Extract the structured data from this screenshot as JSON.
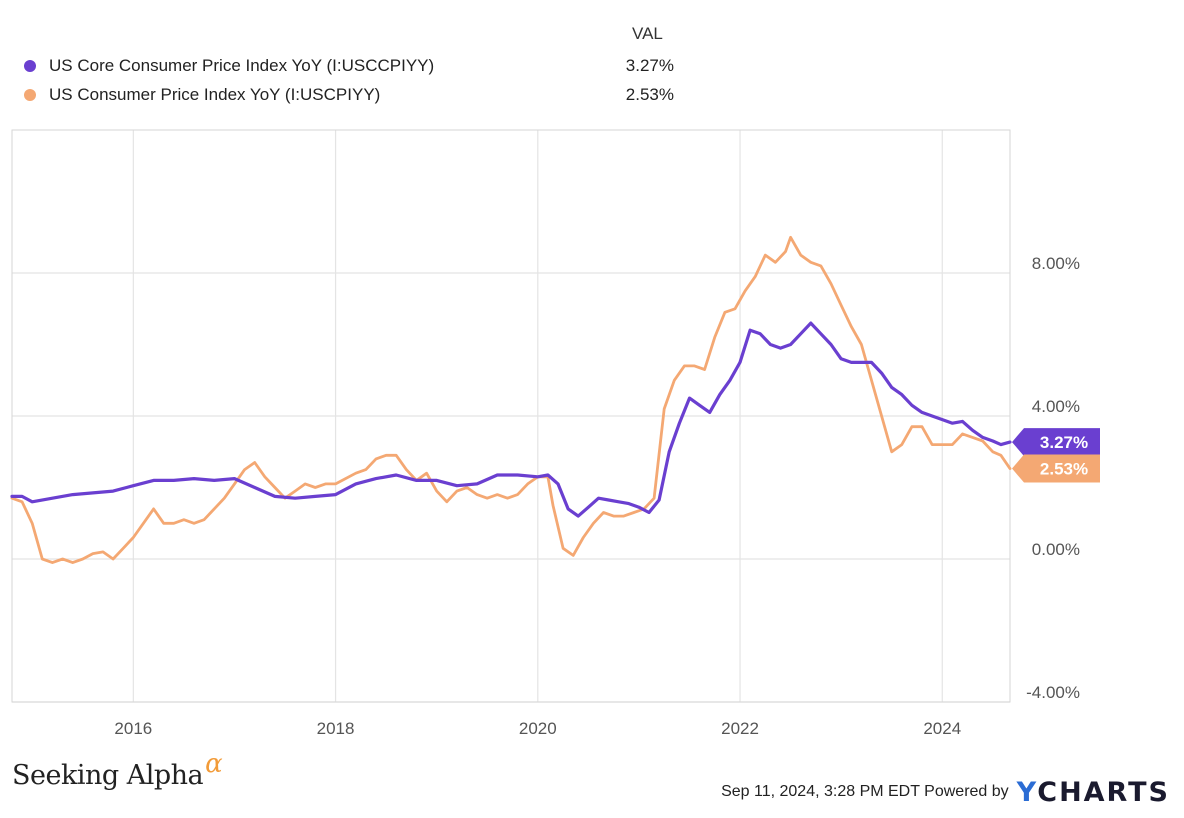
{
  "legend": {
    "header": "VAL",
    "series": [
      {
        "name": "US Core Consumer Price Index YoY (I:USCCPIYY)",
        "value": "3.27%",
        "color": "#6a3fd0"
      },
      {
        "name": "US Consumer Price Index YoY (I:USCPIYY)",
        "value": "2.53%",
        "color": "#f4a873"
      }
    ]
  },
  "chart_data": {
    "type": "line",
    "x_range": [
      2014.8,
      2024.67
    ],
    "y_range": [
      -4.0,
      12.0
    ],
    "x_ticks": [
      {
        "value": 2016,
        "label": "2016"
      },
      {
        "value": 2018,
        "label": "2018"
      },
      {
        "value": 2020,
        "label": "2020"
      },
      {
        "value": 2022,
        "label": "2022"
      },
      {
        "value": 2024,
        "label": "2024"
      }
    ],
    "y_ticks": [
      {
        "value": 8,
        "label": "8.00%"
      },
      {
        "value": 4,
        "label": "4.00%"
      },
      {
        "value": 0,
        "label": "0.00%"
      },
      {
        "value": -4,
        "label": "-4.00%"
      }
    ],
    "grid": true,
    "series": [
      {
        "name": "US Core Consumer Price Index YoY (I:USCCPIYY)",
        "color": "#6a3fd0",
        "end_label": "3.27%",
        "points": [
          [
            2014.8,
            1.75
          ],
          [
            2014.9,
            1.75
          ],
          [
            2015.0,
            1.6
          ],
          [
            2015.2,
            1.7
          ],
          [
            2015.4,
            1.8
          ],
          [
            2015.6,
            1.85
          ],
          [
            2015.8,
            1.9
          ],
          [
            2016.0,
            2.05
          ],
          [
            2016.2,
            2.2
          ],
          [
            2016.4,
            2.2
          ],
          [
            2016.6,
            2.25
          ],
          [
            2016.8,
            2.2
          ],
          [
            2017.0,
            2.25
          ],
          [
            2017.2,
            2.0
          ],
          [
            2017.4,
            1.75
          ],
          [
            2017.6,
            1.7
          ],
          [
            2017.8,
            1.75
          ],
          [
            2018.0,
            1.8
          ],
          [
            2018.2,
            2.1
          ],
          [
            2018.4,
            2.25
          ],
          [
            2018.6,
            2.35
          ],
          [
            2018.8,
            2.2
          ],
          [
            2019.0,
            2.2
          ],
          [
            2019.2,
            2.05
          ],
          [
            2019.4,
            2.1
          ],
          [
            2019.6,
            2.35
          ],
          [
            2019.8,
            2.35
          ],
          [
            2020.0,
            2.3
          ],
          [
            2020.1,
            2.35
          ],
          [
            2020.2,
            2.1
          ],
          [
            2020.3,
            1.4
          ],
          [
            2020.4,
            1.2
          ],
          [
            2020.5,
            1.45
          ],
          [
            2020.6,
            1.7
          ],
          [
            2020.7,
            1.65
          ],
          [
            2020.8,
            1.6
          ],
          [
            2020.9,
            1.55
          ],
          [
            2021.0,
            1.45
          ],
          [
            2021.1,
            1.3
          ],
          [
            2021.2,
            1.65
          ],
          [
            2021.3,
            3.0
          ],
          [
            2021.4,
            3.8
          ],
          [
            2021.5,
            4.5
          ],
          [
            2021.6,
            4.3
          ],
          [
            2021.7,
            4.1
          ],
          [
            2021.8,
            4.6
          ],
          [
            2021.9,
            5.0
          ],
          [
            2022.0,
            5.5
          ],
          [
            2022.1,
            6.4
          ],
          [
            2022.2,
            6.3
          ],
          [
            2022.3,
            6.0
          ],
          [
            2022.4,
            5.9
          ],
          [
            2022.5,
            6.0
          ],
          [
            2022.6,
            6.3
          ],
          [
            2022.7,
            6.6
          ],
          [
            2022.8,
            6.3
          ],
          [
            2022.9,
            6.0
          ],
          [
            2023.0,
            5.6
          ],
          [
            2023.1,
            5.5
          ],
          [
            2023.2,
            5.5
          ],
          [
            2023.3,
            5.5
          ],
          [
            2023.4,
            5.2
          ],
          [
            2023.5,
            4.8
          ],
          [
            2023.6,
            4.6
          ],
          [
            2023.7,
            4.3
          ],
          [
            2023.8,
            4.1
          ],
          [
            2023.9,
            4.0
          ],
          [
            2024.0,
            3.9
          ],
          [
            2024.1,
            3.8
          ],
          [
            2024.2,
            3.85
          ],
          [
            2024.3,
            3.6
          ],
          [
            2024.4,
            3.4
          ],
          [
            2024.5,
            3.3
          ],
          [
            2024.58,
            3.2
          ],
          [
            2024.67,
            3.27
          ]
        ]
      },
      {
        "name": "US Consumer Price Index YoY (I:USCPIYY)",
        "color": "#f4a873",
        "end_label": "2.53%",
        "points": [
          [
            2014.8,
            1.7
          ],
          [
            2014.9,
            1.6
          ],
          [
            2015.0,
            1.0
          ],
          [
            2015.1,
            0.0
          ],
          [
            2015.2,
            -0.1
          ],
          [
            2015.3,
            0.0
          ],
          [
            2015.4,
            -0.1
          ],
          [
            2015.5,
            0.0
          ],
          [
            2015.6,
            0.15
          ],
          [
            2015.7,
            0.2
          ],
          [
            2015.8,
            0.0
          ],
          [
            2015.9,
            0.3
          ],
          [
            2016.0,
            0.6
          ],
          [
            2016.1,
            1.0
          ],
          [
            2016.2,
            1.4
          ],
          [
            2016.3,
            1.0
          ],
          [
            2016.4,
            1.0
          ],
          [
            2016.5,
            1.1
          ],
          [
            2016.6,
            1.0
          ],
          [
            2016.7,
            1.1
          ],
          [
            2016.8,
            1.4
          ],
          [
            2016.9,
            1.7
          ],
          [
            2017.0,
            2.1
          ],
          [
            2017.1,
            2.5
          ],
          [
            2017.2,
            2.7
          ],
          [
            2017.3,
            2.3
          ],
          [
            2017.4,
            2.0
          ],
          [
            2017.5,
            1.7
          ],
          [
            2017.6,
            1.9
          ],
          [
            2017.7,
            2.1
          ],
          [
            2017.8,
            2.0
          ],
          [
            2017.9,
            2.1
          ],
          [
            2018.0,
            2.1
          ],
          [
            2018.2,
            2.4
          ],
          [
            2018.3,
            2.5
          ],
          [
            2018.4,
            2.8
          ],
          [
            2018.5,
            2.9
          ],
          [
            2018.6,
            2.9
          ],
          [
            2018.7,
            2.5
          ],
          [
            2018.8,
            2.2
          ],
          [
            2018.9,
            2.4
          ],
          [
            2019.0,
            1.9
          ],
          [
            2019.1,
            1.6
          ],
          [
            2019.2,
            1.9
          ],
          [
            2019.3,
            2.0
          ],
          [
            2019.4,
            1.8
          ],
          [
            2019.5,
            1.7
          ],
          [
            2019.6,
            1.8
          ],
          [
            2019.7,
            1.7
          ],
          [
            2019.8,
            1.8
          ],
          [
            2019.9,
            2.1
          ],
          [
            2020.0,
            2.3
          ],
          [
            2020.1,
            2.3
          ],
          [
            2020.15,
            1.5
          ],
          [
            2020.25,
            0.3
          ],
          [
            2020.35,
            0.1
          ],
          [
            2020.45,
            0.6
          ],
          [
            2020.55,
            1.0
          ],
          [
            2020.65,
            1.3
          ],
          [
            2020.75,
            1.2
          ],
          [
            2020.85,
            1.2
          ],
          [
            2020.95,
            1.3
          ],
          [
            2021.05,
            1.4
          ],
          [
            2021.15,
            1.7
          ],
          [
            2021.25,
            4.2
          ],
          [
            2021.35,
            5.0
          ],
          [
            2021.45,
            5.4
          ],
          [
            2021.55,
            5.4
          ],
          [
            2021.65,
            5.3
          ],
          [
            2021.75,
            6.2
          ],
          [
            2021.85,
            6.9
          ],
          [
            2021.95,
            7.0
          ],
          [
            2022.05,
            7.5
          ],
          [
            2022.15,
            7.9
          ],
          [
            2022.25,
            8.5
          ],
          [
            2022.35,
            8.3
          ],
          [
            2022.45,
            8.6
          ],
          [
            2022.5,
            9.0
          ],
          [
            2022.6,
            8.5
          ],
          [
            2022.7,
            8.3
          ],
          [
            2022.8,
            8.2
          ],
          [
            2022.9,
            7.7
          ],
          [
            2023.0,
            7.1
          ],
          [
            2023.1,
            6.5
          ],
          [
            2023.2,
            6.0
          ],
          [
            2023.3,
            5.0
          ],
          [
            2023.4,
            4.0
          ],
          [
            2023.5,
            3.0
          ],
          [
            2023.6,
            3.2
          ],
          [
            2023.7,
            3.7
          ],
          [
            2023.8,
            3.7
          ],
          [
            2023.9,
            3.2
          ],
          [
            2024.0,
            3.2
          ],
          [
            2024.1,
            3.2
          ],
          [
            2024.2,
            3.5
          ],
          [
            2024.3,
            3.4
          ],
          [
            2024.4,
            3.3
          ],
          [
            2024.5,
            3.0
          ],
          [
            2024.58,
            2.9
          ],
          [
            2024.67,
            2.53
          ]
        ]
      }
    ]
  },
  "footer": {
    "brand": "Seeking Alpha",
    "brand_symbol": "α",
    "timestamp": "Sep 11, 2024, 3:28 PM EDT Powered by",
    "logo_mark": "Y",
    "logo_text": "CHARTS"
  }
}
